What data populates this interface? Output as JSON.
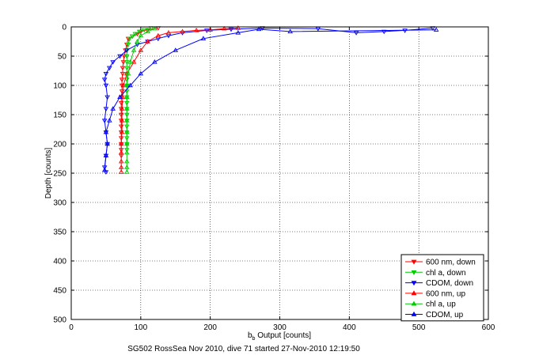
{
  "chart_data": {
    "type": "scatter",
    "title": "",
    "xlabel_main": "b",
    "xlabel_sub": "b",
    "xlabel_rest": " Output [counts]",
    "ylabel": "Depth [counts]",
    "caption": "SG502 RossSea Nov 2010, dive 71 started 27-Nov-2010 12:19:50",
    "xlim": [
      0,
      600
    ],
    "ylim": [
      0,
      500
    ],
    "y_reversed": true,
    "grid": true,
    "legend_position": "bottom-right",
    "xticks": [
      0,
      100,
      200,
      300,
      400,
      500,
      600
    ],
    "yticks": [
      0,
      50,
      100,
      150,
      200,
      250,
      300,
      350,
      400,
      450,
      500
    ],
    "series": [
      {
        "name": "600 nm, down",
        "color": "#ff0000",
        "marker": "triangle-down",
        "x": [
          125,
          110,
          100,
          95,
          88,
          82,
          80,
          78,
          76,
          75,
          74,
          74,
          73,
          73,
          73,
          72,
          72,
          72,
          72,
          72,
          72,
          72,
          72,
          72,
          72,
          72
        ],
        "y": [
          2,
          5,
          8,
          12,
          16,
          20,
          30,
          40,
          50,
          60,
          70,
          80,
          90,
          100,
          110,
          120,
          130,
          140,
          150,
          160,
          170,
          180,
          190,
          200,
          210,
          220
        ]
      },
      {
        "name": "chl a, down",
        "color": "#00cc00",
        "marker": "triangle-down",
        "x": [
          115,
          105,
          98,
          92,
          88,
          84,
          82,
          80,
          80,
          80,
          80,
          80,
          80,
          80,
          80,
          80,
          80,
          80,
          80,
          80,
          80,
          80,
          80,
          80,
          80
        ],
        "y": [
          2,
          5,
          8,
          12,
          16,
          20,
          30,
          40,
          50,
          60,
          70,
          80,
          90,
          100,
          110,
          120,
          130,
          140,
          150,
          160,
          170,
          180,
          190,
          200,
          210
        ]
      },
      {
        "name": "CDOM, down",
        "color": "#0000ff",
        "marker": "triangle-down",
        "x": [
          520,
          480,
          450,
          410,
          355,
          275,
          230,
          195,
          160,
          140,
          125,
          110,
          95,
          80,
          70,
          60,
          55,
          50,
          48,
          50,
          52,
          50,
          48,
          50,
          52,
          50,
          48,
          50
        ],
        "y": [
          2,
          6,
          8,
          10,
          3,
          2,
          4,
          6,
          10,
          15,
          20,
          25,
          30,
          40,
          50,
          60,
          70,
          80,
          90,
          100,
          120,
          140,
          160,
          180,
          200,
          220,
          240,
          248
        ]
      },
      {
        "name": "600 nm, up",
        "color": "#ff0000",
        "marker": "triangle-up",
        "x": [
          72,
          72,
          72,
          72,
          72,
          73,
          73,
          73,
          74,
          75,
          80,
          90,
          100,
          110,
          125,
          140,
          160,
          180,
          200,
          220,
          240
        ],
        "y": [
          248,
          240,
          230,
          215,
          200,
          180,
          160,
          140,
          120,
          100,
          80,
          60,
          40,
          25,
          15,
          10,
          8,
          6,
          5,
          3,
          2
        ]
      },
      {
        "name": "chl a, up",
        "color": "#00cc00",
        "marker": "triangle-up",
        "x": [
          80,
          80,
          80,
          80,
          80,
          80,
          80,
          80,
          80,
          80,
          82,
          85,
          90,
          95,
          100,
          110,
          120
        ],
        "y": [
          248,
          240,
          230,
          215,
          200,
          180,
          160,
          140,
          120,
          100,
          80,
          60,
          40,
          25,
          15,
          8,
          3
        ]
      },
      {
        "name": "CDOM, up",
        "color": "#0000ff",
        "marker": "triangle-up",
        "x": [
          48,
          50,
          52,
          50,
          55,
          60,
          70,
          85,
          100,
          120,
          150,
          190,
          240,
          270,
          315,
          525
        ],
        "y": [
          245,
          220,
          200,
          180,
          160,
          140,
          120,
          100,
          80,
          60,
          40,
          20,
          10,
          4,
          8,
          5
        ]
      }
    ]
  }
}
